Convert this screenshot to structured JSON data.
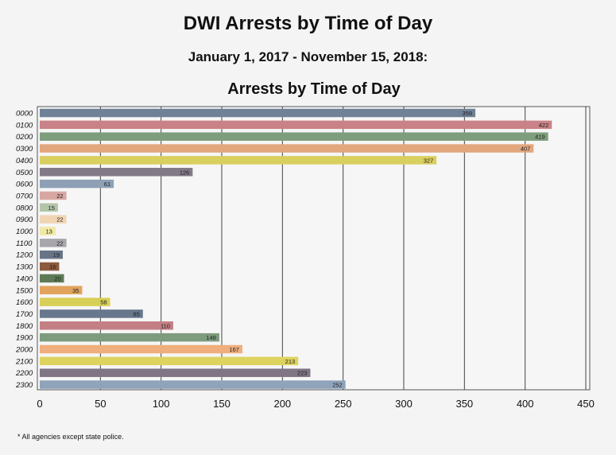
{
  "title": "DWI Arrests by Time of Day",
  "subtitle": "January 1, 2017    -    November 15, 2018:",
  "footnote": "* All agencies except state police.",
  "chart_data": {
    "type": "bar",
    "orientation": "horizontal",
    "title": "Arrests by Time of Day",
    "categories": [
      "0000",
      "0100",
      "0200",
      "0300",
      "0400",
      "0500",
      "0600",
      "0700",
      "0800",
      "0900",
      "1000",
      "1100",
      "1200",
      "1300",
      "1400",
      "1500",
      "1600",
      "1700",
      "1800",
      "1900",
      "2000",
      "2100",
      "2200",
      "2300"
    ],
    "values": [
      359,
      422,
      419,
      407,
      327,
      126,
      61,
      22,
      15,
      22,
      13,
      22,
      19,
      16,
      20,
      35,
      58,
      85,
      110,
      148,
      167,
      213,
      223,
      252
    ],
    "xlim": [
      0,
      450
    ],
    "xticks": [
      0,
      50,
      100,
      150,
      200,
      250,
      300,
      350,
      400,
      450
    ],
    "grid": "vertical",
    "colors": [
      "#6f8196",
      "#c98287",
      "#7e9d7c",
      "#e3a77e",
      "#d9cf5f",
      "#837a88",
      "#8ea0b6",
      "#d9a7a2",
      "#b3c5a8",
      "#f1d5b3",
      "#f1e8a3",
      "#a8a6ab",
      "#687486",
      "#8c5a3d",
      "#5d7a55",
      "#e2a35c",
      "#d8cf57",
      "#67778d",
      "#c47f84",
      "#7d9b7d",
      "#eeae7e",
      "#ddd35e",
      "#7f7585",
      "#8fa3ba"
    ]
  }
}
